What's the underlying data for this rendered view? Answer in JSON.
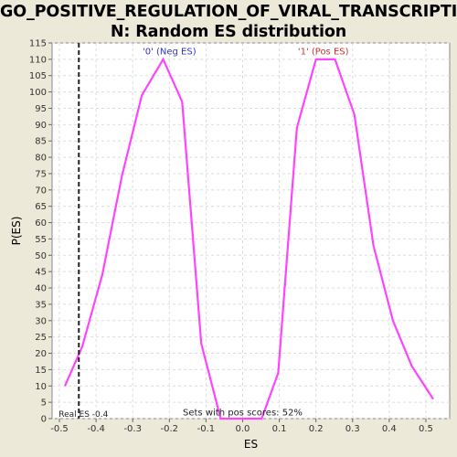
{
  "chart_data": {
    "type": "line",
    "title_lines": [
      "GO_POSITIVE_REGULATION_OF_VIRAL_TRANSCRIPTIO",
      "N: Random ES distribution"
    ],
    "xlabel": "ES",
    "ylabel": "P(ES)",
    "xlim": [
      -0.52,
      0.565
    ],
    "ylim": [
      0,
      115
    ],
    "x_ticks": [
      -0.5,
      -0.4,
      -0.3,
      -0.2,
      -0.1,
      0.0,
      0.1,
      0.2,
      0.3,
      0.4,
      0.5
    ],
    "x_tick_labels": [
      "-0.5",
      "-0.4",
      "-0.3",
      "-0.2",
      "-0.1",
      "0.0",
      "0.1",
      "0.2",
      "0.3",
      "0.4",
      "0.5"
    ],
    "y_ticks": [
      0,
      5,
      10,
      15,
      20,
      25,
      30,
      35,
      40,
      45,
      50,
      55,
      60,
      65,
      70,
      75,
      80,
      85,
      90,
      95,
      100,
      105,
      110,
      115
    ],
    "y_tick_labels": [
      "0",
      "5",
      "10",
      "15",
      "20",
      "25",
      "30",
      "35",
      "40",
      "45",
      "50",
      "55",
      "60",
      "65",
      "70",
      "75",
      "80",
      "85",
      "90",
      "95",
      "100",
      "105",
      "110",
      "115"
    ],
    "grid": true,
    "line_color": "#ff44ff",
    "series": [
      {
        "x": [
          -0.485,
          -0.438,
          -0.383,
          -0.33,
          -0.275,
          -0.217,
          -0.165,
          -0.113,
          -0.06,
          0.0,
          0.052,
          0.097,
          0.148,
          0.2,
          0.252,
          0.305,
          0.357,
          0.41,
          0.462,
          0.52
        ],
        "y": [
          10,
          22,
          44,
          74,
          99,
          110,
          97,
          23,
          0,
          0,
          0,
          14,
          89,
          110,
          110,
          93,
          53,
          30,
          16,
          6
        ]
      }
    ],
    "real_es": {
      "x": -0.447,
      "label": "Real ES -0.4"
    },
    "annotations": [
      {
        "text": "'0' (Neg ES)",
        "x": -0.2,
        "y": 111.5,
        "color": "#3333cc"
      },
      {
        "text": "'1' (Pos ES)",
        "x": 0.22,
        "y": 111.5,
        "color": "#cc3333"
      },
      {
        "text": "Sets with pos scores: 52%",
        "x": 0.0,
        "y": 1.0,
        "color": "#222222"
      }
    ]
  }
}
